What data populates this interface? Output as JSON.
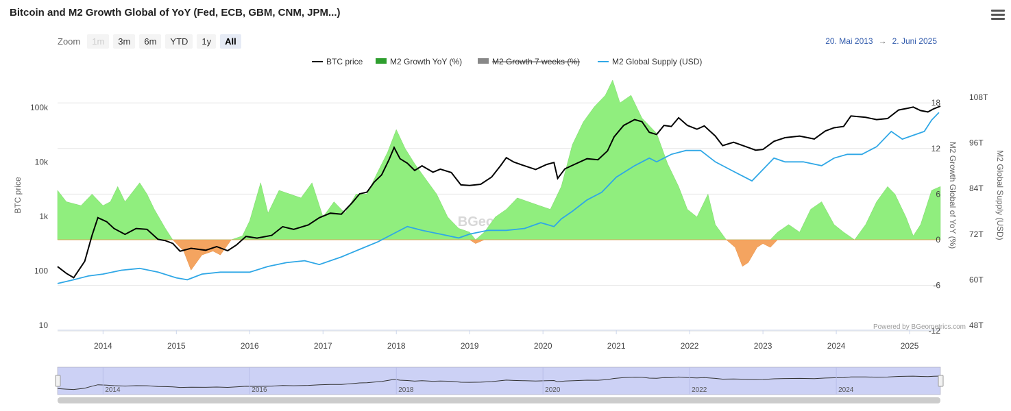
{
  "title": "Bitcoin and M2 Growth Global of YoY (Fed, ECB, GBM, CNM, JPM...)",
  "zoom": {
    "label": "Zoom",
    "buttons": [
      {
        "label": "1m",
        "state": "disabled"
      },
      {
        "label": "3m",
        "state": "normal"
      },
      {
        "label": "6m",
        "state": "normal"
      },
      {
        "label": "YTD",
        "state": "normal"
      },
      {
        "label": "1y",
        "state": "normal"
      },
      {
        "label": "All",
        "state": "active"
      }
    ]
  },
  "range": {
    "from": "20. Mai 2013",
    "arrow": "→",
    "to": "2. Juni 2025"
  },
  "credit": "Powered by BGeometrics.com",
  "watermark": "BGeometrics",
  "colors": {
    "btc": "#000000",
    "growth_pos": "#90ee7e",
    "growth_neg": "#f4a460",
    "supply": "#2fa7e6",
    "navigator": "#ccd1f5"
  },
  "chart_data": {
    "type": "line",
    "title": "Bitcoin and M2 Growth Global of YoY (Fed, ECB, GBM, CNM, JPM...)",
    "x_range": [
      "2013-05-20",
      "2025-06-02"
    ],
    "x_ticks": [
      "2014",
      "2015",
      "2016",
      "2017",
      "2018",
      "2019",
      "2020",
      "2021",
      "2022",
      "2023",
      "2024",
      "2025"
    ],
    "axes": {
      "btc": {
        "label": "BTC price",
        "scale": "log",
        "range": [
          10,
          250000
        ],
        "ticks": [
          "10",
          "100",
          "1k",
          "10k",
          "100k"
        ]
      },
      "growth": {
        "label": "M2 Growth Global of YoY (%)",
        "range": [
          -12,
          18
        ],
        "ticks": [
          "-12",
          "-6",
          "0",
          "6",
          "12",
          "18"
        ]
      },
      "supply": {
        "label": "M2 Global Supply (USD)",
        "unit": "T",
        "range": [
          48,
          108
        ],
        "ticks": [
          "48T",
          "60T",
          "72T",
          "84T",
          "96T",
          "108T"
        ]
      }
    },
    "legend": [
      {
        "name": "BTC price",
        "color": "#000000",
        "hidden": false
      },
      {
        "name": "M2 Growth YoY (%)",
        "color": "#2e9e2e",
        "hidden": false
      },
      {
        "name": "M2 Growth 7 weeks (%)",
        "color": "#888888",
        "hidden": true
      },
      {
        "name": "M2 Global Supply (USD)",
        "color": "#2fa7e6",
        "hidden": false
      }
    ],
    "series": [
      {
        "name": "BTC price",
        "axis": "btc",
        "points": [
          [
            2013.38,
            120
          ],
          [
            2013.5,
            90
          ],
          [
            2013.6,
            75
          ],
          [
            2013.75,
            150
          ],
          [
            2013.85,
            450
          ],
          [
            2013.93,
            950
          ],
          [
            2014.05,
            800
          ],
          [
            2014.15,
            600
          ],
          [
            2014.3,
            470
          ],
          [
            2014.45,
            600
          ],
          [
            2014.6,
            580
          ],
          [
            2014.75,
            380
          ],
          [
            2014.85,
            360
          ],
          [
            2014.95,
            320
          ],
          [
            2015.05,
            230
          ],
          [
            2015.2,
            260
          ],
          [
            2015.4,
            240
          ],
          [
            2015.55,
            280
          ],
          [
            2015.7,
            235
          ],
          [
            2015.82,
            300
          ],
          [
            2015.95,
            430
          ],
          [
            2016.1,
            400
          ],
          [
            2016.3,
            450
          ],
          [
            2016.45,
            650
          ],
          [
            2016.6,
            580
          ],
          [
            2016.8,
            700
          ],
          [
            2016.95,
            950
          ],
          [
            2017.1,
            1150
          ],
          [
            2017.25,
            1100
          ],
          [
            2017.4,
            1800
          ],
          [
            2017.5,
            2600
          ],
          [
            2017.6,
            2800
          ],
          [
            2017.7,
            4300
          ],
          [
            2017.8,
            5800
          ],
          [
            2017.9,
            11000
          ],
          [
            2017.97,
            18500
          ],
          [
            2018.05,
            11500
          ],
          [
            2018.15,
            9500
          ],
          [
            2018.25,
            7000
          ],
          [
            2018.35,
            8500
          ],
          [
            2018.5,
            6500
          ],
          [
            2018.6,
            7400
          ],
          [
            2018.75,
            6400
          ],
          [
            2018.88,
            3800
          ],
          [
            2019.0,
            3700
          ],
          [
            2019.15,
            3900
          ],
          [
            2019.3,
            5300
          ],
          [
            2019.42,
            8500
          ],
          [
            2019.5,
            12000
          ],
          [
            2019.6,
            10000
          ],
          [
            2019.75,
            8500
          ],
          [
            2019.9,
            7300
          ],
          [
            2020.05,
            9000
          ],
          [
            2020.15,
            9800
          ],
          [
            2020.2,
            5000
          ],
          [
            2020.3,
            7500
          ],
          [
            2020.45,
            9300
          ],
          [
            2020.6,
            11500
          ],
          [
            2020.75,
            11000
          ],
          [
            2020.88,
            16000
          ],
          [
            2020.97,
            29000
          ],
          [
            2021.1,
            47000
          ],
          [
            2021.25,
            60000
          ],
          [
            2021.35,
            55000
          ],
          [
            2021.45,
            35000
          ],
          [
            2021.55,
            32000
          ],
          [
            2021.65,
            47000
          ],
          [
            2021.75,
            45000
          ],
          [
            2021.85,
            65000
          ],
          [
            2021.97,
            47000
          ],
          [
            2022.1,
            40000
          ],
          [
            2022.2,
            46000
          ],
          [
            2022.35,
            30000
          ],
          [
            2022.45,
            20000
          ],
          [
            2022.6,
            23000
          ],
          [
            2022.75,
            19500
          ],
          [
            2022.9,
            16500
          ],
          [
            2023.0,
            17000
          ],
          [
            2023.15,
            24000
          ],
          [
            2023.3,
            28000
          ],
          [
            2023.5,
            30000
          ],
          [
            2023.7,
            26500
          ],
          [
            2023.85,
            37000
          ],
          [
            2023.97,
            42500
          ],
          [
            2024.1,
            45000
          ],
          [
            2024.2,
            70000
          ],
          [
            2024.4,
            66000
          ],
          [
            2024.55,
            60000
          ],
          [
            2024.7,
            63000
          ],
          [
            2024.85,
            90000
          ],
          [
            2024.97,
            97000
          ],
          [
            2025.05,
            102000
          ],
          [
            2025.15,
            88000
          ],
          [
            2025.25,
            83000
          ],
          [
            2025.33,
            95000
          ],
          [
            2025.42,
            106000
          ]
        ]
      },
      {
        "name": "M2 Global Supply (USD)",
        "axis": "supply",
        "points": [
          [
            2013.38,
            59
          ],
          [
            2013.6,
            60
          ],
          [
            2013.8,
            61
          ],
          [
            2014.0,
            61.5
          ],
          [
            2014.25,
            62.5
          ],
          [
            2014.5,
            63
          ],
          [
            2014.75,
            62
          ],
          [
            2015.0,
            60.5
          ],
          [
            2015.15,
            60
          ],
          [
            2015.35,
            61.5
          ],
          [
            2015.6,
            62
          ],
          [
            2015.85,
            62
          ],
          [
            2016.0,
            62
          ],
          [
            2016.25,
            63.5
          ],
          [
            2016.5,
            64.5
          ],
          [
            2016.75,
            65
          ],
          [
            2016.95,
            64
          ],
          [
            2017.25,
            66
          ],
          [
            2017.5,
            68
          ],
          [
            2017.75,
            70
          ],
          [
            2018.0,
            72.5
          ],
          [
            2018.15,
            74
          ],
          [
            2018.35,
            73
          ],
          [
            2018.6,
            72
          ],
          [
            2018.85,
            71
          ],
          [
            2019.0,
            72
          ],
          [
            2019.25,
            73
          ],
          [
            2019.5,
            73
          ],
          [
            2019.75,
            73.5
          ],
          [
            2019.97,
            75
          ],
          [
            2020.15,
            74
          ],
          [
            2020.25,
            76
          ],
          [
            2020.4,
            78
          ],
          [
            2020.6,
            81
          ],
          [
            2020.8,
            83
          ],
          [
            2021.0,
            87
          ],
          [
            2021.25,
            90
          ],
          [
            2021.45,
            92
          ],
          [
            2021.55,
            91
          ],
          [
            2021.75,
            93
          ],
          [
            2021.95,
            94
          ],
          [
            2022.15,
            94
          ],
          [
            2022.35,
            91
          ],
          [
            2022.55,
            89
          ],
          [
            2022.75,
            87
          ],
          [
            2022.85,
            86
          ],
          [
            2023.0,
            89
          ],
          [
            2023.15,
            92
          ],
          [
            2023.3,
            91
          ],
          [
            2023.55,
            91
          ],
          [
            2023.8,
            90
          ],
          [
            2023.97,
            92
          ],
          [
            2024.15,
            93
          ],
          [
            2024.35,
            93
          ],
          [
            2024.55,
            95
          ],
          [
            2024.75,
            99
          ],
          [
            2024.9,
            97
          ],
          [
            2025.05,
            98
          ],
          [
            2025.2,
            99
          ],
          [
            2025.3,
            102
          ],
          [
            2025.4,
            104
          ]
        ]
      },
      {
        "name": "M2 Growth YoY (%)",
        "axis": "growth",
        "points": [
          [
            2013.38,
            6.5
          ],
          [
            2013.5,
            5
          ],
          [
            2013.7,
            4.5
          ],
          [
            2013.85,
            6
          ],
          [
            2014.0,
            4.5
          ],
          [
            2014.1,
            5
          ],
          [
            2014.2,
            7
          ],
          [
            2014.3,
            5
          ],
          [
            2014.5,
            7.5
          ],
          [
            2014.6,
            6
          ],
          [
            2014.7,
            4
          ],
          [
            2014.85,
            1.5
          ],
          [
            2014.95,
            0
          ],
          [
            2015.1,
            -1.5
          ],
          [
            2015.2,
            -4
          ],
          [
            2015.35,
            -2
          ],
          [
            2015.5,
            -1.5
          ],
          [
            2015.6,
            -2
          ],
          [
            2015.75,
            0
          ],
          [
            2015.9,
            0.5
          ],
          [
            2016.0,
            2.5
          ],
          [
            2016.15,
            7.5
          ],
          [
            2016.25,
            3.5
          ],
          [
            2016.4,
            6.5
          ],
          [
            2016.55,
            6
          ],
          [
            2016.7,
            5.5
          ],
          [
            2016.85,
            7.5
          ],
          [
            2017.0,
            3
          ],
          [
            2017.15,
            5
          ],
          [
            2017.3,
            3.5
          ],
          [
            2017.45,
            6
          ],
          [
            2017.6,
            6
          ],
          [
            2017.75,
            9
          ],
          [
            2017.88,
            11.5
          ],
          [
            2018.0,
            14.5
          ],
          [
            2018.12,
            12
          ],
          [
            2018.25,
            10
          ],
          [
            2018.4,
            8
          ],
          [
            2018.55,
            6
          ],
          [
            2018.7,
            3
          ],
          [
            2018.85,
            1.5
          ],
          [
            2019.0,
            1
          ],
          [
            2019.08,
            -0.5
          ],
          [
            2019.2,
            1
          ],
          [
            2019.35,
            3
          ],
          [
            2019.5,
            4
          ],
          [
            2019.65,
            5.5
          ],
          [
            2019.8,
            5
          ],
          [
            2019.95,
            4.5
          ],
          [
            2020.1,
            4
          ],
          [
            2020.25,
            7
          ],
          [
            2020.4,
            12.5
          ],
          [
            2020.55,
            15.5
          ],
          [
            2020.7,
            17.5
          ],
          [
            2020.85,
            19
          ],
          [
            2020.95,
            21
          ],
          [
            2021.05,
            18
          ],
          [
            2021.2,
            19
          ],
          [
            2021.35,
            16
          ],
          [
            2021.55,
            14
          ],
          [
            2021.7,
            10
          ],
          [
            2021.85,
            7
          ],
          [
            2021.97,
            4
          ],
          [
            2022.1,
            3
          ],
          [
            2022.25,
            6
          ],
          [
            2022.35,
            2
          ],
          [
            2022.5,
            0
          ],
          [
            2022.62,
            -1
          ],
          [
            2022.72,
            -3.5
          ],
          [
            2022.8,
            -3
          ],
          [
            2022.92,
            -1
          ],
          [
            2023.0,
            -0.5
          ],
          [
            2023.1,
            -1
          ],
          [
            2023.2,
            1
          ],
          [
            2023.35,
            2
          ],
          [
            2023.5,
            1
          ],
          [
            2023.65,
            4
          ],
          [
            2023.8,
            5
          ],
          [
            2023.97,
            2
          ],
          [
            2024.1,
            1
          ],
          [
            2024.25,
            0
          ],
          [
            2024.4,
            2
          ],
          [
            2024.55,
            5
          ],
          [
            2024.7,
            7
          ],
          [
            2024.8,
            6
          ],
          [
            2024.95,
            3
          ],
          [
            2025.05,
            0.5
          ],
          [
            2025.15,
            2
          ],
          [
            2025.3,
            6.5
          ],
          [
            2025.42,
            7
          ]
        ]
      }
    ]
  }
}
